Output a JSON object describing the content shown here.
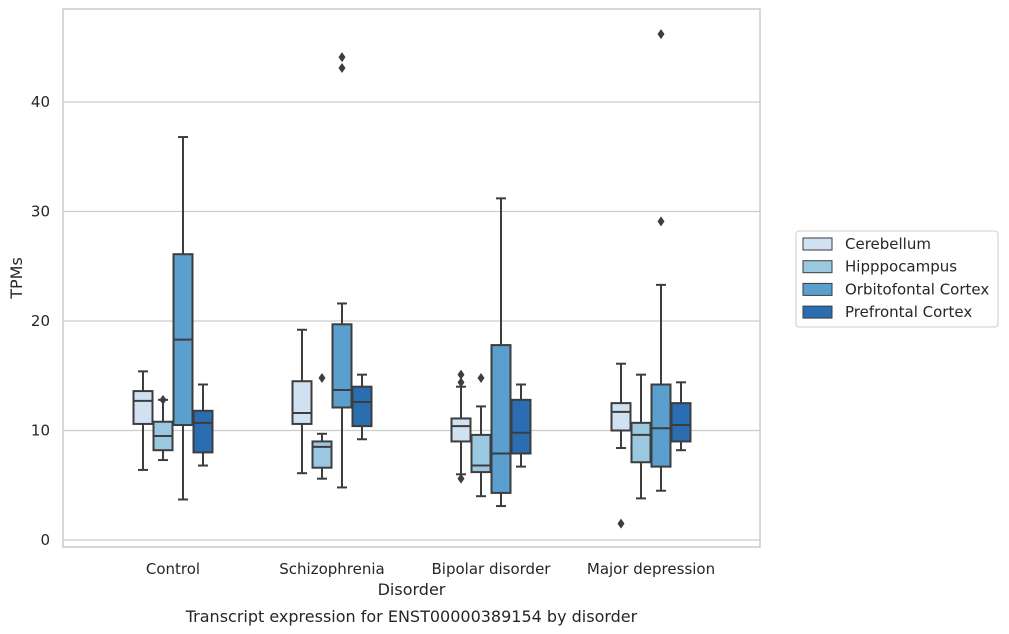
{
  "chart_data": {
    "type": "box",
    "xlabel": "Disorder",
    "ylabel": "TPMs",
    "caption": "Transcript expression for ENST00000389154 by disorder",
    "ylim": [
      -0.6,
      48.2
    ],
    "yticks": [
      0,
      10,
      20,
      30,
      40
    ],
    "grid": "horizontal",
    "legend_position": "right",
    "categories": [
      "Control",
      "Schizophrenia",
      "Bipolar disorder",
      "Major depression"
    ],
    "series": [
      {
        "name": "Cerebellum",
        "color": "#d0e1f2",
        "boxes": [
          {
            "whisker_low": 6.4,
            "q1": 10.6,
            "median": 12.7,
            "q3": 13.6,
            "whisker_high": 15.4,
            "outliers": []
          },
          {
            "whisker_low": 6.1,
            "q1": 10.6,
            "median": 11.6,
            "q3": 14.5,
            "whisker_high": 19.2,
            "outliers": []
          },
          {
            "whisker_low": 6.0,
            "q1": 9.0,
            "median": 10.4,
            "q3": 11.1,
            "whisker_high": 14.0,
            "outliers": [
              5.6,
              14.4,
              15.1
            ]
          },
          {
            "whisker_low": 8.4,
            "q1": 10.0,
            "median": 11.7,
            "q3": 12.5,
            "whisker_high": 16.1,
            "outliers": [
              1.5
            ]
          }
        ]
      },
      {
        "name": "Hipppocampus",
        "color": "#9ac8e0",
        "boxes": [
          {
            "whisker_low": 7.3,
            "q1": 8.2,
            "median": 9.5,
            "q3": 10.8,
            "whisker_high": 12.8,
            "outliers": [
              12.8
            ]
          },
          {
            "whisker_low": 5.6,
            "q1": 6.6,
            "median": 8.5,
            "q3": 9.0,
            "whisker_high": 9.7,
            "outliers": [
              14.8
            ]
          },
          {
            "whisker_low": 4.0,
            "q1": 6.2,
            "median": 6.8,
            "q3": 9.6,
            "whisker_high": 12.2,
            "outliers": [
              14.8
            ]
          },
          {
            "whisker_low": 3.8,
            "q1": 7.1,
            "median": 9.6,
            "q3": 10.7,
            "whisker_high": 15.1,
            "outliers": []
          }
        ]
      },
      {
        "name": "Orbitofontal Cortex",
        "color": "#5a9fcd",
        "boxes": [
          {
            "whisker_low": 3.7,
            "q1": 10.5,
            "median": 18.3,
            "q3": 26.1,
            "whisker_high": 36.8,
            "outliers": []
          },
          {
            "whisker_low": 4.8,
            "q1": 12.1,
            "median": 13.7,
            "q3": 19.7,
            "whisker_high": 21.6,
            "outliers": [
              43.1,
              44.1
            ]
          },
          {
            "whisker_low": 3.1,
            "q1": 4.3,
            "median": 7.9,
            "q3": 17.8,
            "whisker_high": 31.2,
            "outliers": []
          },
          {
            "whisker_low": 4.5,
            "q1": 6.7,
            "median": 10.2,
            "q3": 14.2,
            "whisker_high": 23.3,
            "outliers": [
              29.1,
              46.2
            ]
          }
        ]
      },
      {
        "name": "Prefrontal Cortex",
        "color": "#2a6db1",
        "boxes": [
          {
            "whisker_low": 6.8,
            "q1": 8.0,
            "median": 10.7,
            "q3": 11.8,
            "whisker_high": 14.2,
            "outliers": []
          },
          {
            "whisker_low": 9.2,
            "q1": 10.4,
            "median": 12.6,
            "q3": 14.0,
            "whisker_high": 15.1,
            "outliers": []
          },
          {
            "whisker_low": 6.7,
            "q1": 7.9,
            "median": 9.8,
            "q3": 12.8,
            "whisker_high": 14.2,
            "outliers": []
          },
          {
            "whisker_low": 8.2,
            "q1": 9.0,
            "median": 10.5,
            "q3": 12.5,
            "whisker_high": 14.4,
            "outliers": []
          }
        ]
      }
    ]
  }
}
